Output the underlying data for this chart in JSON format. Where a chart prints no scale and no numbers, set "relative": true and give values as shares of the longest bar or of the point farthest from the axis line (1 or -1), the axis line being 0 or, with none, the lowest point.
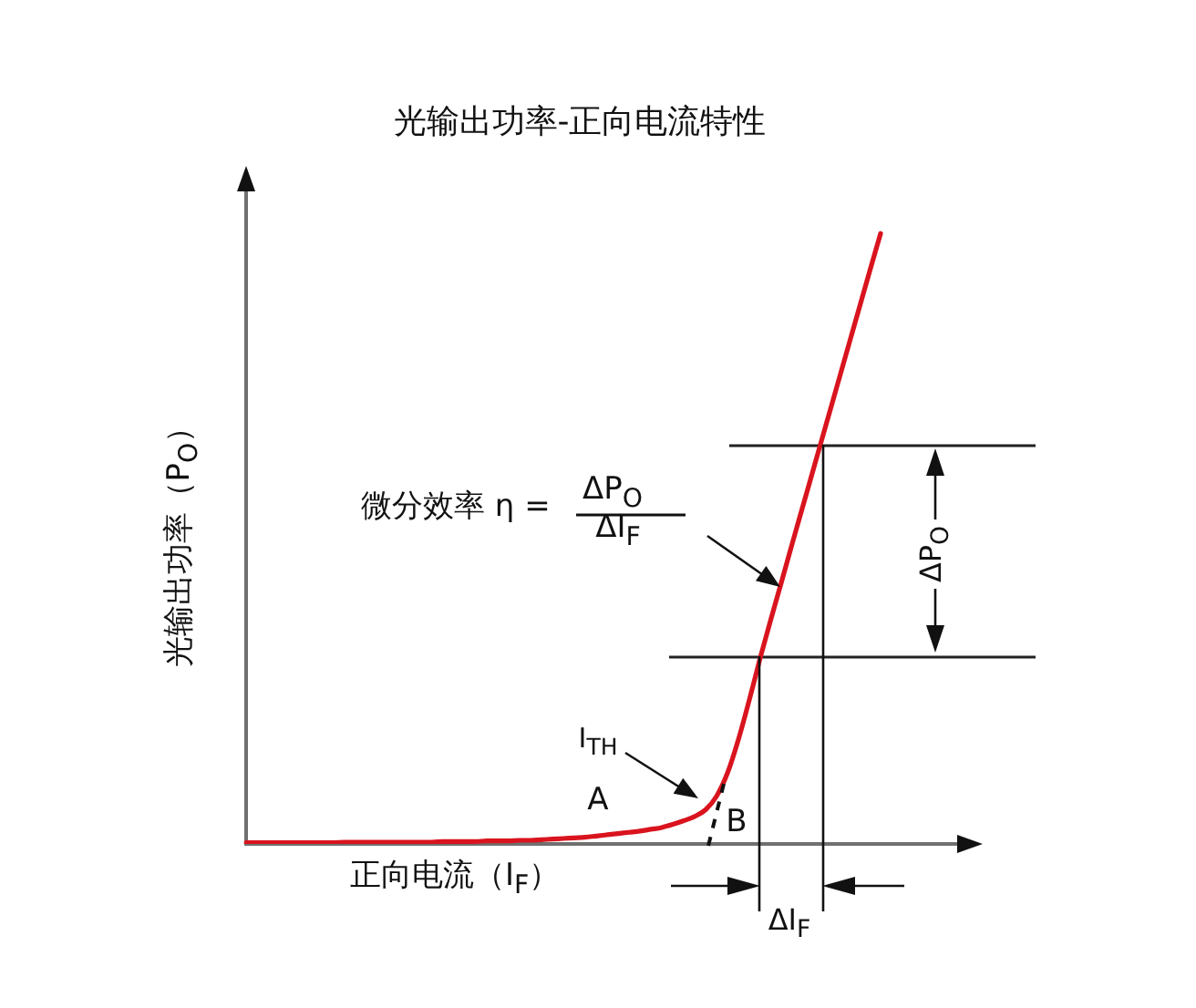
{
  "chart_data": {
    "type": "line",
    "title": "光输出功率-正向电流特性",
    "xlabel": "正向电流（I$_{F}$）",
    "ylabel": "光输出功率（P$_{O}$）",
    "relative": true,
    "marker": "none",
    "tick_labels": false,
    "categories": [
      null,
      null,
      null,
      null,
      null,
      null,
      null,
      null,
      null,
      null,
      null,
      null,
      null,
      null,
      null,
      null,
      null,
      null,
      null,
      null,
      null,
      null,
      null,
      null,
      null,
      null,
      null,
      null,
      null,
      null,
      null,
      null,
      null,
      null,
      null,
      null,
      null,
      null,
      null,
      null,
      null,
      null,
      null,
      null,
      null,
      null,
      null,
      null,
      null,
      null,
      null,
      null,
      null,
      null,
      null,
      null,
      null,
      null,
      null,
      null,
      null,
      null,
      null,
      null,
      null,
      null
    ],
    "color": "#d9141e",
    "values": [
      0.002,
      0.002,
      0.002,
      0.002,
      0.002,
      0.002,
      0.002,
      0.002,
      0.002,
      0.003,
      0.003,
      0.003,
      0.003,
      0.003,
      0.003,
      0.003,
      0.003,
      0.003,
      0.004,
      0.004,
      0.004,
      0.004,
      0.005,
      0.005,
      0.005,
      0.006,
      0.006,
      0.007,
      0.008,
      0.009,
      0.01,
      0.011,
      0.013,
      0.015,
      0.017,
      0.019,
      0.021,
      0.024,
      0.027,
      0.032,
      0.038,
      0.045,
      0.056,
      0.078,
      0.116,
      0.171,
      0.236,
      0.305,
      0.37,
      0.433,
      0.497,
      0.56,
      0.623,
      0.686,
      0.749,
      0.812,
      0.875,
      0.938,
      1.0,
      null,
      null,
      null,
      null,
      null,
      null,
      null
    ],
    "ref_lines": [
      {
        "axis": "y",
        "value": 0.307,
        "color": "#222222"
      },
      {
        "axis": "y",
        "value": 0.654,
        "color": "#222222"
      }
    ],
    "annotations": [
      "微分效率 η =",
      "ΔP$_{O}$",
      "ΔI$_{F}$",
      "I$_{TH}$",
      "A",
      "B",
      "ΔP$_{O}$",
      "ΔI$_{F}$"
    ]
  }
}
